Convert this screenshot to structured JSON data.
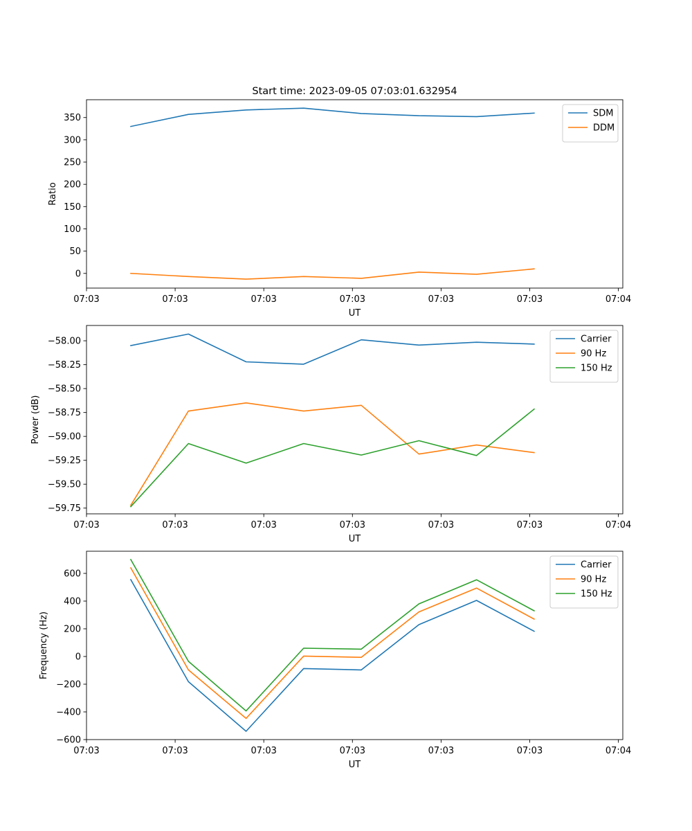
{
  "chart_data": [
    {
      "type": "line",
      "title": "Start time: 2023-09-05 07:03:01.632954",
      "xlabel": "UT",
      "ylabel": "Ratio",
      "xlim": [
        0,
        12.1
      ],
      "ylim": [
        -33,
        390
      ],
      "x": [
        1,
        2.3,
        3.6,
        4.9,
        6.2,
        7.5,
        8.8,
        10.1
      ],
      "xticks": [
        0,
        2,
        4,
        6,
        8,
        10,
        12
      ],
      "xticklabels": [
        "07:03",
        "07:03",
        "07:03",
        "07:03",
        "07:03",
        "07:03",
        "07:04"
      ],
      "yticks": [
        0,
        50,
        100,
        150,
        200,
        250,
        300,
        350
      ],
      "yticklabels": [
        "0",
        "50",
        "100",
        "150",
        "200",
        "250",
        "300",
        "350"
      ],
      "legend": "top-right",
      "series": [
        {
          "name": "SDM",
          "color": "#1f77b4",
          "values": [
            330,
            357,
            367,
            371,
            359,
            354,
            352,
            360
          ]
        },
        {
          "name": "DDM",
          "color": "#ff7f0e",
          "values": [
            0,
            -7,
            -13,
            -7,
            -11,
            3,
            -2,
            10
          ]
        }
      ]
    },
    {
      "type": "line",
      "title": "",
      "xlabel": "UT",
      "ylabel": "Power (dB)",
      "xlim": [
        0,
        12.1
      ],
      "ylim": [
        -59.81,
        -57.84
      ],
      "x": [
        1,
        2.3,
        3.6,
        4.9,
        6.2,
        7.5,
        8.8,
        10.1
      ],
      "xticks": [
        0,
        2,
        4,
        6,
        8,
        10,
        12
      ],
      "xticklabels": [
        "07:03",
        "07:03",
        "07:03",
        "07:03",
        "07:03",
        "07:03",
        "07:04"
      ],
      "yticks": [
        -58.0,
        -58.25,
        -58.5,
        -58.75,
        -59.0,
        -59.25,
        -59.5,
        -59.75
      ],
      "yticklabels": [
        "−58.00",
        "−58.25",
        "−58.50",
        "−58.75",
        "−59.00",
        "−59.25",
        "−59.50",
        "−59.75"
      ],
      "legend": "top-right",
      "series": [
        {
          "name": "Carrier",
          "color": "#1f77b4",
          "values": [
            -58.05,
            -57.93,
            -58.22,
            -58.245,
            -57.99,
            -58.045,
            -58.015,
            -58.035
          ]
        },
        {
          "name": "90 Hz",
          "color": "#ff7f0e",
          "values": [
            -59.72,
            -58.735,
            -58.65,
            -58.735,
            -58.675,
            -59.185,
            -59.09,
            -59.17
          ]
        },
        {
          "name": "150 Hz",
          "color": "#2ca02c",
          "values": [
            -59.735,
            -59.075,
            -59.28,
            -59.075,
            -59.195,
            -59.045,
            -59.2,
            -58.715
          ]
        }
      ]
    },
    {
      "type": "line",
      "title": "",
      "xlabel": "UT",
      "ylabel": "Frequency (Hz)",
      "xlim": [
        0,
        12.1
      ],
      "ylim": [
        -600,
        760
      ],
      "x": [
        1,
        2.3,
        3.6,
        4.9,
        6.2,
        7.5,
        8.8,
        10.1
      ],
      "xticks": [
        0,
        2,
        4,
        6,
        8,
        10,
        12
      ],
      "xticklabels": [
        "07:03",
        "07:03",
        "07:03",
        "07:03",
        "07:03",
        "07:03",
        "07:04"
      ],
      "yticks": [
        -600,
        -400,
        -200,
        0,
        200,
        400,
        600
      ],
      "yticklabels": [
        "−600",
        "−400",
        "−200",
        "0",
        "200",
        "400",
        "600"
      ],
      "legend": "top-right",
      "series": [
        {
          "name": "Carrier",
          "color": "#1f77b4",
          "values": [
            555,
            -182,
            -540,
            -87,
            -97,
            230,
            405,
            182
          ]
        },
        {
          "name": "90 Hz",
          "color": "#ff7f0e",
          "values": [
            640,
            -97,
            -447,
            3,
            -6,
            322,
            494,
            270
          ]
        },
        {
          "name": "150 Hz",
          "color": "#2ca02c",
          "values": [
            700,
            -35,
            -393,
            60,
            53,
            380,
            554,
            330
          ]
        }
      ]
    }
  ]
}
